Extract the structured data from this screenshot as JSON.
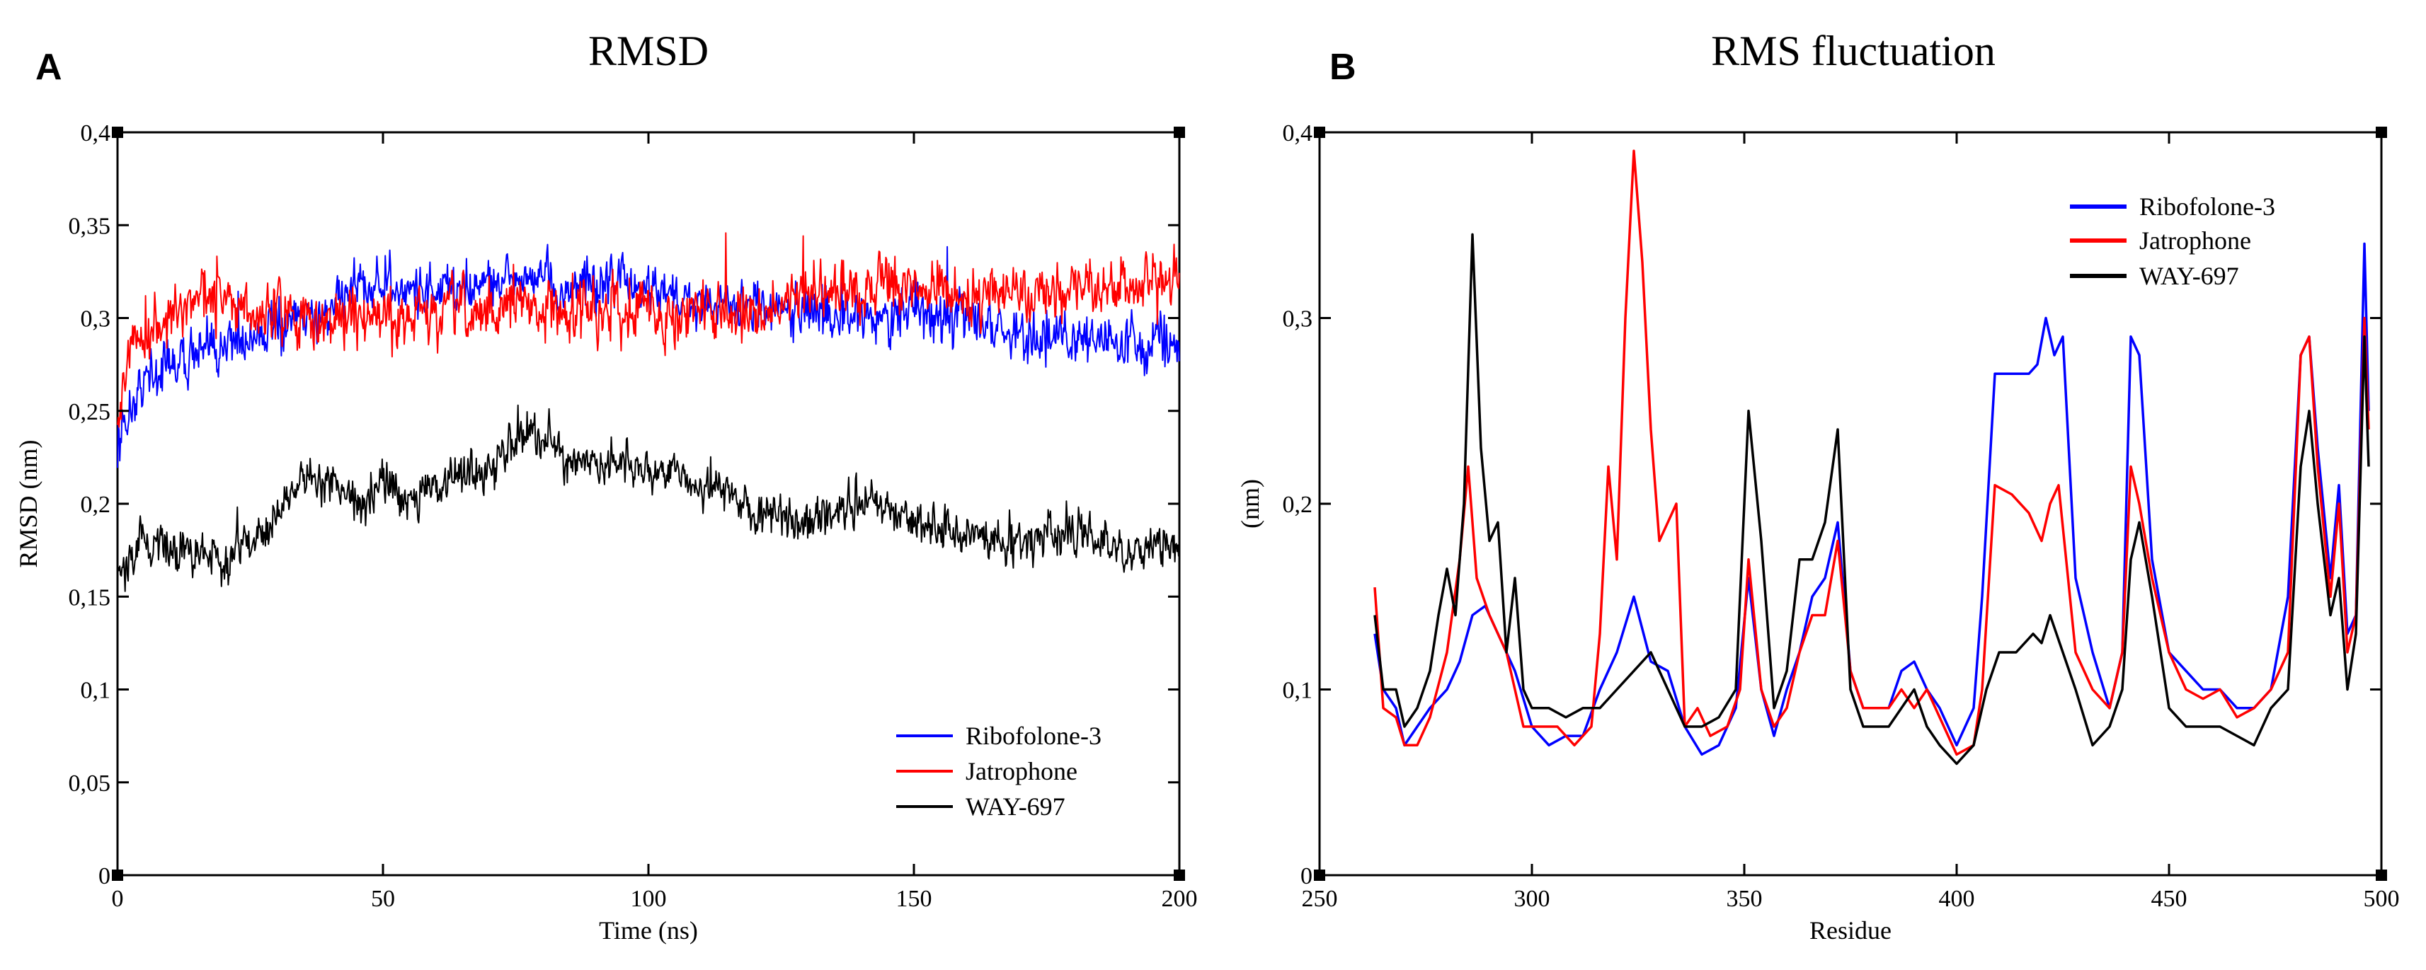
{
  "panels": [
    {
      "letter": "A",
      "chart_data": {
        "type": "line",
        "title": "RMSD",
        "xlabel": "Time (ns)",
        "ylabel": "RMSD (nm)",
        "xlim": [
          0,
          200
        ],
        "ylim": [
          0,
          0.4
        ],
        "x_ticks": [
          0,
          50,
          100,
          150,
          200
        ],
        "x_tick_labels": [
          "0",
          "50",
          "100",
          "150",
          "200"
        ],
        "y_ticks": [
          0,
          0.05,
          0.1,
          0.15,
          0.2,
          0.25,
          0.3,
          0.35,
          0.4
        ],
        "y_tick_labels": [
          "0",
          "0,05",
          "0,1",
          "0,15",
          "0,2",
          "0,25",
          "0,3",
          "0,35",
          "0,4"
        ],
        "grid": false,
        "legend_position": "bottom-right",
        "noise": [
          0.013,
          0.014,
          0.011
        ],
        "series": [
          {
            "name": "Ribofolone-3",
            "color": "#0000ff",
            "x": [
              0,
              2,
              5,
              10,
              15,
              20,
              25,
              30,
              35,
              40,
              45,
              50,
              55,
              60,
              65,
              70,
              75,
              80,
              85,
              90,
              95,
              100,
              105,
              110,
              115,
              120,
              125,
              130,
              135,
              140,
              145,
              150,
              155,
              160,
              165,
              170,
              175,
              180,
              185,
              190,
              195,
              200
            ],
            "y": [
              0.23,
              0.25,
              0.265,
              0.275,
              0.28,
              0.285,
              0.29,
              0.295,
              0.3,
              0.305,
              0.32,
              0.315,
              0.315,
              0.315,
              0.315,
              0.32,
              0.32,
              0.32,
              0.315,
              0.315,
              0.32,
              0.315,
              0.31,
              0.31,
              0.31,
              0.305,
              0.305,
              0.305,
              0.3,
              0.3,
              0.3,
              0.305,
              0.3,
              0.3,
              0.295,
              0.29,
              0.29,
              0.29,
              0.29,
              0.285,
              0.285,
              0.29
            ]
          },
          {
            "name": "Jatrophone",
            "color": "#ff0000",
            "x": [
              0,
              2,
              5,
              10,
              15,
              20,
              25,
              30,
              35,
              40,
              45,
              50,
              55,
              60,
              65,
              70,
              75,
              80,
              85,
              90,
              95,
              100,
              105,
              110,
              115,
              120,
              125,
              130,
              135,
              140,
              145,
              150,
              155,
              160,
              165,
              170,
              175,
              180,
              185,
              190,
              195,
              200
            ],
            "y": [
              0.25,
              0.28,
              0.29,
              0.3,
              0.31,
              0.31,
              0.3,
              0.305,
              0.3,
              0.3,
              0.3,
              0.3,
              0.3,
              0.3,
              0.305,
              0.3,
              0.31,
              0.31,
              0.3,
              0.305,
              0.305,
              0.305,
              0.3,
              0.305,
              0.305,
              0.305,
              0.305,
              0.31,
              0.315,
              0.315,
              0.32,
              0.315,
              0.315,
              0.31,
              0.315,
              0.315,
              0.315,
              0.315,
              0.315,
              0.32,
              0.315,
              0.32
            ]
          },
          {
            "name": "WAY-697",
            "color": "#000000",
            "x": [
              0,
              5,
              10,
              15,
              20,
              25,
              30,
              35,
              40,
              45,
              50,
              55,
              60,
              65,
              70,
              75,
              80,
              85,
              90,
              95,
              100,
              105,
              110,
              115,
              120,
              125,
              130,
              135,
              140,
              145,
              150,
              155,
              160,
              165,
              170,
              175,
              180,
              185,
              190,
              195,
              200
            ],
            "y": [
              0.16,
              0.18,
              0.175,
              0.175,
              0.17,
              0.18,
              0.195,
              0.215,
              0.21,
              0.2,
              0.21,
              0.205,
              0.21,
              0.215,
              0.215,
              0.24,
              0.235,
              0.225,
              0.22,
              0.22,
              0.215,
              0.22,
              0.21,
              0.205,
              0.195,
              0.195,
              0.19,
              0.195,
              0.2,
              0.2,
              0.19,
              0.185,
              0.185,
              0.18,
              0.18,
              0.18,
              0.185,
              0.18,
              0.175,
              0.18,
              0.18
            ]
          }
        ]
      }
    },
    {
      "letter": "B",
      "chart_data": {
        "type": "line",
        "title": "RMS fluctuation",
        "xlabel": "Residue",
        "ylabel": "(nm)",
        "xlim": [
          250,
          500
        ],
        "ylim": [
          0,
          0.4
        ],
        "x_ticks": [
          250,
          300,
          350,
          400,
          450,
          500
        ],
        "x_tick_labels": [
          "250",
          "300",
          "350",
          "400",
          "450",
          "500"
        ],
        "y_ticks": [
          0,
          0.1,
          0.2,
          0.3,
          0.4
        ],
        "y_tick_labels": [
          "0",
          "0,1",
          "0,2",
          "0,3",
          "0,4"
        ],
        "grid": false,
        "legend_position": "top-right",
        "series": [
          {
            "name": "Ribofolone-3",
            "color": "#0000ff",
            "x": [
              263,
              265,
              268,
              270,
              273,
              276,
              280,
              283,
              286,
              289,
              292,
              296,
              300,
              304,
              308,
              312,
              316,
              320,
              324,
              328,
              332,
              336,
              340,
              344,
              348,
              351,
              354,
              357,
              360,
              363,
              366,
              369,
              372,
              375,
              378,
              381,
              384,
              387,
              390,
              393,
              396,
              400,
              404,
              406,
              409,
              413,
              417,
              419,
              421,
              423,
              425,
              428,
              432,
              436,
              439,
              441,
              443,
              446,
              450,
              454,
              458,
              462,
              466,
              470,
              474,
              478,
              481,
              483,
              485,
              488,
              490,
              492,
              494,
              496,
              497
            ],
            "y": [
              0.13,
              0.1,
              0.09,
              0.07,
              0.08,
              0.09,
              0.1,
              0.115,
              0.14,
              0.145,
              0.13,
              0.11,
              0.08,
              0.07,
              0.075,
              0.075,
              0.1,
              0.12,
              0.15,
              0.115,
              0.11,
              0.08,
              0.065,
              0.07,
              0.09,
              0.16,
              0.1,
              0.075,
              0.1,
              0.12,
              0.15,
              0.16,
              0.19,
              0.11,
              0.09,
              0.09,
              0.09,
              0.11,
              0.115,
              0.1,
              0.09,
              0.07,
              0.09,
              0.15,
              0.27,
              0.27,
              0.27,
              0.275,
              0.3,
              0.28,
              0.29,
              0.16,
              0.12,
              0.09,
              0.12,
              0.29,
              0.28,
              0.17,
              0.12,
              0.11,
              0.1,
              0.1,
              0.09,
              0.09,
              0.1,
              0.15,
              0.28,
              0.29,
              0.23,
              0.16,
              0.21,
              0.13,
              0.14,
              0.34,
              0.25
            ]
          },
          {
            "name": "Jatrophone",
            "color": "#ff0000",
            "x": [
              263,
              265,
              268,
              270,
              273,
              276,
              280,
              283,
              285,
              287,
              290,
              294,
              298,
              302,
              306,
              310,
              314,
              316,
              318,
              320,
              322,
              324,
              326,
              328,
              330,
              332,
              334,
              336,
              339,
              342,
              346,
              349,
              351,
              354,
              357,
              360,
              363,
              366,
              369,
              372,
              375,
              378,
              381,
              384,
              387,
              390,
              393,
              396,
              400,
              404,
              406,
              409,
              413,
              417,
              420,
              422,
              424,
              428,
              432,
              436,
              439,
              441,
              443,
              446,
              450,
              454,
              458,
              462,
              466,
              470,
              474,
              478,
              481,
              483,
              485,
              488,
              490,
              492,
              494,
              496,
              497
            ],
            "y": [
              0.155,
              0.09,
              0.085,
              0.07,
              0.07,
              0.085,
              0.12,
              0.17,
              0.22,
              0.16,
              0.14,
              0.12,
              0.08,
              0.08,
              0.08,
              0.07,
              0.08,
              0.13,
              0.22,
              0.17,
              0.3,
              0.39,
              0.33,
              0.24,
              0.18,
              0.19,
              0.2,
              0.08,
              0.09,
              0.075,
              0.08,
              0.1,
              0.17,
              0.1,
              0.08,
              0.09,
              0.12,
              0.14,
              0.14,
              0.18,
              0.11,
              0.09,
              0.09,
              0.09,
              0.1,
              0.09,
              0.1,
              0.085,
              0.065,
              0.07,
              0.1,
              0.21,
              0.205,
              0.195,
              0.18,
              0.2,
              0.21,
              0.12,
              0.1,
              0.09,
              0.12,
              0.22,
              0.2,
              0.16,
              0.12,
              0.1,
              0.095,
              0.1,
              0.085,
              0.09,
              0.1,
              0.12,
              0.28,
              0.29,
              0.22,
              0.15,
              0.2,
              0.12,
              0.14,
              0.3,
              0.24
            ]
          },
          {
            "name": "WAY-697",
            "color": "#000000",
            "x": [
              263,
              265,
              268,
              270,
              273,
              276,
              278,
              280,
              282,
              284,
              286,
              288,
              290,
              292,
              294,
              296,
              298,
              300,
              304,
              308,
              312,
              316,
              320,
              324,
              328,
              332,
              336,
              340,
              344,
              348,
              351,
              354,
              357,
              360,
              363,
              366,
              369,
              372,
              375,
              378,
              381,
              384,
              387,
              390,
              393,
              396,
              400,
              404,
              407,
              410,
              414,
              418,
              420,
              422,
              425,
              428,
              432,
              436,
              439,
              441,
              443,
              446,
              450,
              454,
              458,
              462,
              466,
              470,
              474,
              478,
              481,
              483,
              485,
              488,
              490,
              492,
              494,
              496,
              497
            ],
            "y": [
              0.14,
              0.1,
              0.1,
              0.08,
              0.09,
              0.11,
              0.14,
              0.165,
              0.14,
              0.2,
              0.345,
              0.23,
              0.18,
              0.19,
              0.12,
              0.16,
              0.1,
              0.09,
              0.09,
              0.085,
              0.09,
              0.09,
              0.1,
              0.11,
              0.12,
              0.1,
              0.08,
              0.08,
              0.085,
              0.1,
              0.25,
              0.18,
              0.09,
              0.11,
              0.17,
              0.17,
              0.19,
              0.24,
              0.1,
              0.08,
              0.08,
              0.08,
              0.09,
              0.1,
              0.08,
              0.07,
              0.06,
              0.07,
              0.1,
              0.12,
              0.12,
              0.13,
              0.125,
              0.14,
              0.12,
              0.1,
              0.07,
              0.08,
              0.1,
              0.17,
              0.19,
              0.15,
              0.09,
              0.08,
              0.08,
              0.08,
              0.075,
              0.07,
              0.09,
              0.1,
              0.22,
              0.25,
              0.2,
              0.14,
              0.16,
              0.1,
              0.13,
              0.29,
              0.22
            ]
          }
        ]
      }
    }
  ]
}
